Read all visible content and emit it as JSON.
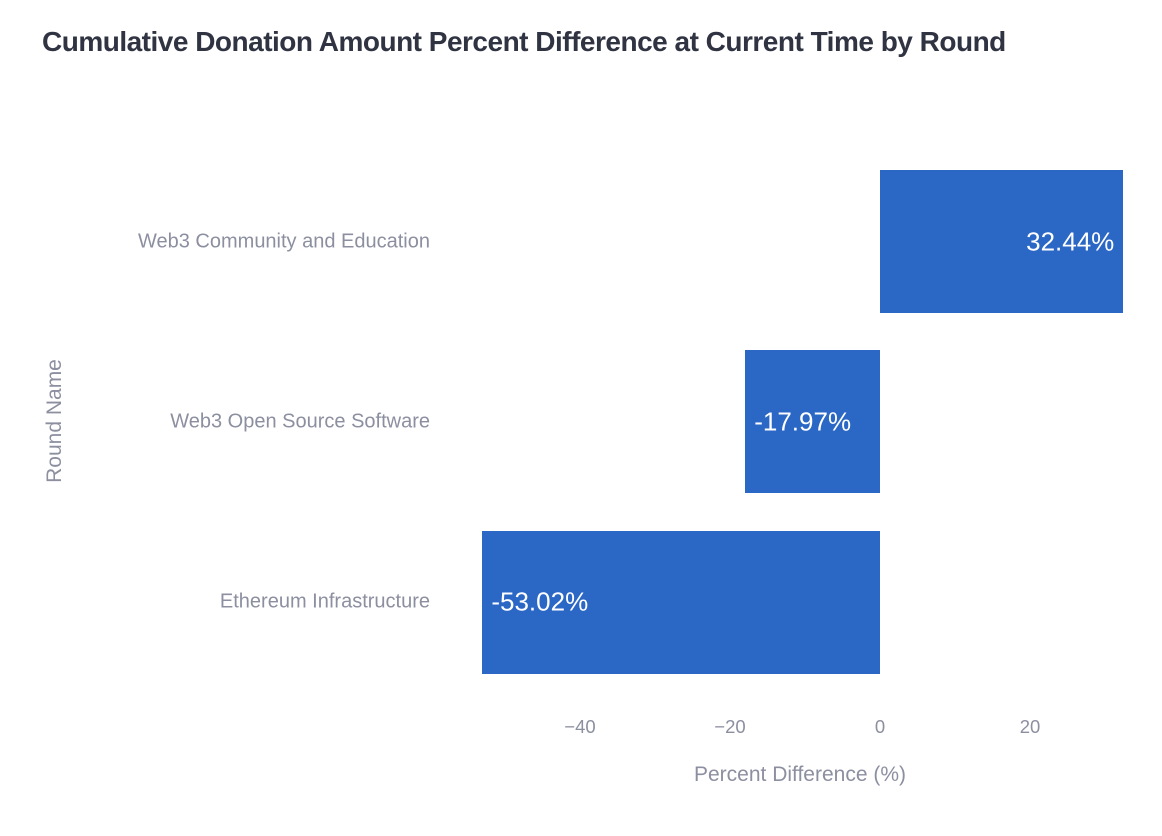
{
  "chart_data": {
    "type": "bar",
    "orientation": "horizontal",
    "title": "Cumulative Donation Amount Percent Difference at Current Time by Round",
    "categories": [
      "Web3 Community and Education",
      "Web3 Open Source Software",
      "Ethereum Infrastructure"
    ],
    "values": [
      32.44,
      -17.97,
      -53.02
    ],
    "value_labels": [
      "32.44%",
      "-17.97%",
      "-53.02%"
    ],
    "xlabel": "Percent Difference (%)",
    "ylabel": "Round Name",
    "x_ticks": [
      -40,
      -20,
      0,
      20
    ],
    "x_tick_labels": [
      "−40",
      "−20",
      "0",
      "20"
    ],
    "xlim": [
      -58.7,
      34.9
    ],
    "grid": false,
    "legend": "none",
    "value_label_position": "inside-end",
    "colors": {
      "bar": "#2b67c5",
      "value_label": "#ffffff",
      "title_text": "#2f3342",
      "axis_text": "#8c8fa0",
      "background": "#ffffff"
    }
  }
}
